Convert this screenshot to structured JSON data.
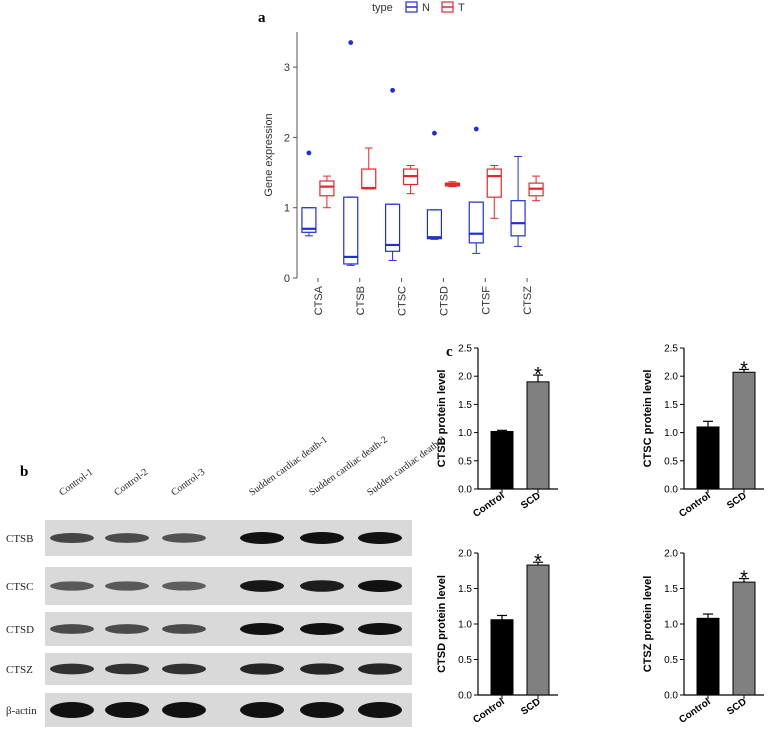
{
  "panels": {
    "a": "a",
    "b": "b",
    "c": "c"
  },
  "colors": {
    "N": "#1f2fd6",
    "T": "#e8262b",
    "control_bar": "#000000",
    "scd_bar": "#808080",
    "band": "#111111"
  },
  "chart_data": [
    {
      "type": "boxplot",
      "panel": "a",
      "legend": {
        "title": "type",
        "entries": [
          "N",
          "T"
        ],
        "placement": "top"
      },
      "ylabel": "Gene expression",
      "ylim": [
        0,
        3.5
      ],
      "yticks": [
        0,
        1,
        2,
        3
      ],
      "categories": [
        "CTSA",
        "CTSB",
        "CTSC",
        "CTSD",
        "CTSF",
        "CTSZ"
      ],
      "series": [
        {
          "name": "N",
          "boxes": [
            {
              "min": 0.6,
              "q1": 0.65,
              "median": 0.7,
              "q3": 1.0,
              "max": 1.0,
              "outliers": [
                1.78
              ]
            },
            {
              "min": 0.18,
              "q1": 0.2,
              "median": 0.3,
              "q3": 1.15,
              "max": 1.15,
              "outliers": [
                3.35
              ]
            },
            {
              "min": 0.25,
              "q1": 0.38,
              "median": 0.47,
              "q3": 1.05,
              "max": 1.05,
              "outliers": [
                2.67
              ]
            },
            {
              "min": 0.55,
              "q1": 0.56,
              "median": 0.58,
              "q3": 0.97,
              "max": 0.97,
              "outliers": [
                2.06
              ]
            },
            {
              "min": 0.35,
              "q1": 0.5,
              "median": 0.63,
              "q3": 1.08,
              "max": 1.08,
              "outliers": [
                2.12
              ]
            },
            {
              "min": 0.45,
              "q1": 0.6,
              "median": 0.78,
              "q3": 1.1,
              "max": 1.73,
              "outliers": []
            }
          ]
        },
        {
          "name": "T",
          "boxes": [
            {
              "min": 1.0,
              "q1": 1.17,
              "median": 1.3,
              "q3": 1.38,
              "max": 1.45,
              "outliers": []
            },
            {
              "min": 1.27,
              "q1": 1.27,
              "median": 1.28,
              "q3": 1.55,
              "max": 1.85,
              "outliers": []
            },
            {
              "min": 1.2,
              "q1": 1.33,
              "median": 1.45,
              "q3": 1.55,
              "max": 1.6,
              "outliers": []
            },
            {
              "min": 1.3,
              "q1": 1.31,
              "median": 1.33,
              "q3": 1.35,
              "max": 1.37,
              "outliers": []
            },
            {
              "min": 0.85,
              "q1": 1.15,
              "median": 1.45,
              "q3": 1.55,
              "max": 1.6,
              "outliers": []
            },
            {
              "min": 1.1,
              "q1": 1.17,
              "median": 1.27,
              "q3": 1.35,
              "max": 1.45,
              "outliers": []
            }
          ]
        }
      ]
    },
    {
      "type": "blot",
      "panel": "b",
      "lanes": [
        "Control-1",
        "Control-2",
        "Control-3",
        "Sudden cardiac death-1",
        "Sudden cardiac death-2",
        "Sudden cardiac death-3"
      ],
      "rows": [
        {
          "label": "CTSB",
          "intensity": [
            0.6,
            0.55,
            0.5,
            1.0,
            1.0,
            1.0
          ]
        },
        {
          "label": "CTSC",
          "intensity": [
            0.45,
            0.45,
            0.4,
            0.95,
            0.9,
            1.0
          ]
        },
        {
          "label": "CTSD",
          "intensity": [
            0.55,
            0.55,
            0.55,
            1.0,
            1.0,
            1.0
          ]
        },
        {
          "label": "CTSZ",
          "intensity": [
            0.75,
            0.75,
            0.75,
            0.85,
            0.85,
            0.85
          ]
        },
        {
          "label": "β-actin",
          "intensity": [
            1.0,
            1.0,
            1.0,
            1.0,
            1.0,
            1.0
          ]
        }
      ]
    },
    {
      "type": "bar",
      "panel": "c",
      "categories": [
        "Control",
        "SCD"
      ],
      "values": [
        1.02,
        1.9
      ],
      "errors": [
        0.02,
        0.12
      ],
      "ylabel": "CTSB protein level",
      "ylim": [
        0,
        2.5
      ],
      "yticks": [
        "0.0",
        "0.5",
        "1.0",
        "1.5",
        "2.0",
        "2.5"
      ],
      "significance": "*"
    },
    {
      "type": "bar",
      "panel": "c",
      "categories": [
        "Control",
        "SCD"
      ],
      "values": [
        1.1,
        2.07
      ],
      "errors": [
        0.1,
        0.05
      ],
      "ylabel": "CTSC protein level",
      "ylim": [
        0,
        2.5
      ],
      "yticks": [
        "0.0",
        "0.5",
        "1.0",
        "1.5",
        "2.0",
        "2.5"
      ],
      "significance": "*"
    },
    {
      "type": "bar",
      "panel": "c",
      "categories": [
        "Control",
        "SCD"
      ],
      "values": [
        1.06,
        1.83
      ],
      "errors": [
        0.06,
        0.04
      ],
      "ylabel": "CTSD protein level",
      "ylim": [
        0,
        2.0
      ],
      "yticks": [
        "0.0",
        "0.5",
        "1.0",
        "1.5",
        "2.0"
      ],
      "significance": "*"
    },
    {
      "type": "bar",
      "panel": "c",
      "categories": [
        "Control",
        "SCD"
      ],
      "values": [
        1.08,
        1.59
      ],
      "errors": [
        0.06,
        0.05
      ],
      "ylabel": "CTSZ protein level",
      "ylim": [
        0,
        2.0
      ],
      "yticks": [
        "0.0",
        "0.5",
        "1.0",
        "1.5",
        "2.0"
      ],
      "significance": "*"
    }
  ]
}
